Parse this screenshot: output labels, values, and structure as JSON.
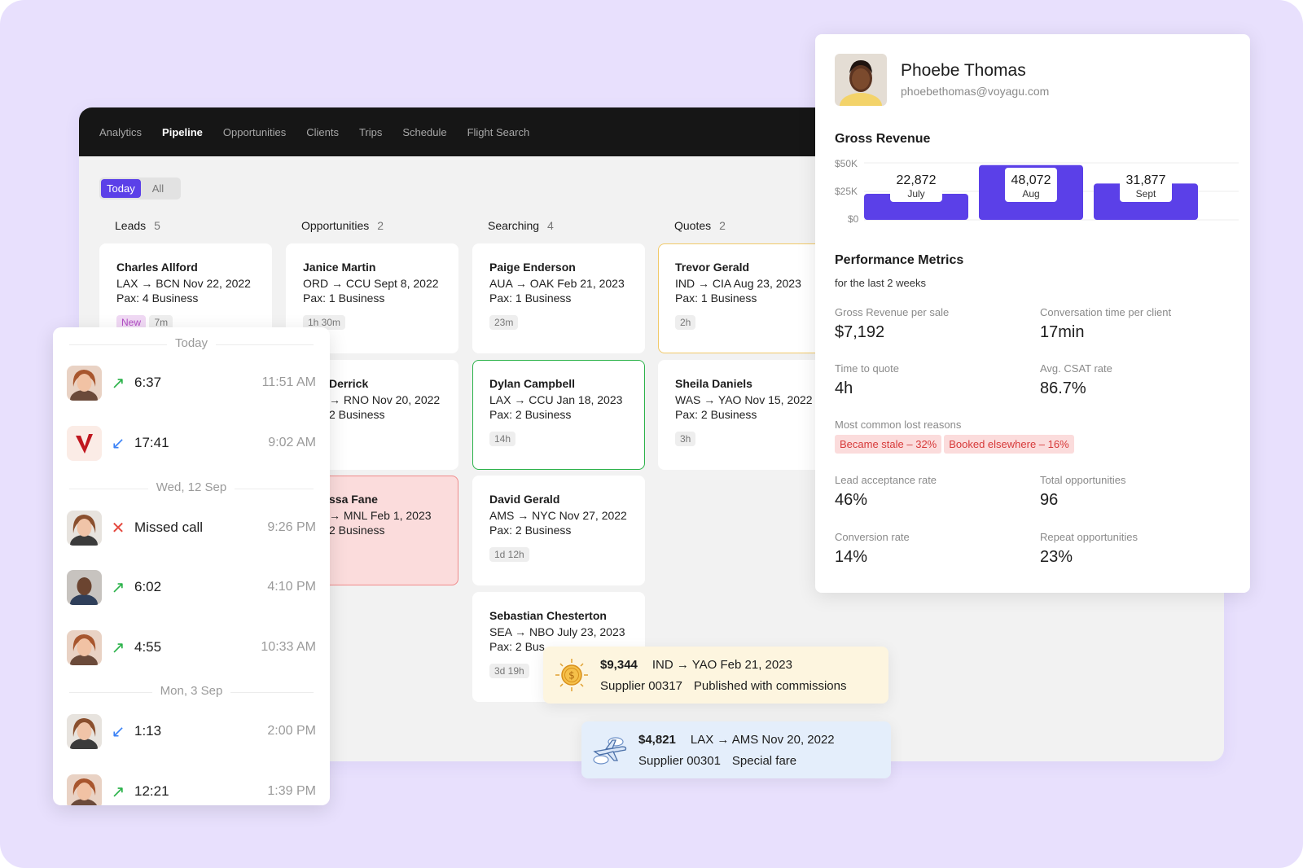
{
  "nav": [
    "Analytics",
    "Pipeline",
    "Opportunities",
    "Clients",
    "Trips",
    "Schedule",
    "Flight Search"
  ],
  "nav_active": "Pipeline",
  "segment": {
    "today": "Today",
    "all": "All"
  },
  "columns": [
    {
      "title": "Leads",
      "count": "5"
    },
    {
      "title": "Opportunities",
      "count": "2"
    },
    {
      "title": "Searching",
      "count": "4"
    },
    {
      "title": "Quotes",
      "count": "2"
    }
  ],
  "cards": {
    "charles": {
      "name": "Charles Allford",
      "route": "LAX → BCN  Nov 22, 2022",
      "pax": "Pax: 4  Business",
      "tag_new": "New",
      "tag": "7m"
    },
    "janice": {
      "name": "Janice Martin",
      "route": "ORD → CCU  Sept 8, 2022",
      "pax": "Pax: 1  Business",
      "tag": "1h 30m"
    },
    "derrick": {
      "name": "Derrick",
      "route": "→ RNO  Nov 20, 2022",
      "pax": "2  Business"
    },
    "fane": {
      "name": "ssa Fane",
      "route": "→ MNL  Feb 1, 2023",
      "pax": "2  Business"
    },
    "paige": {
      "name": "Paige Enderson",
      "route": "AUA → OAK  Feb 21, 2023",
      "pax": "Pax: 1  Business",
      "tag": "23m"
    },
    "dylan": {
      "name": "Dylan Campbell",
      "route": "LAX → CCU  Jan 18, 2023",
      "pax": "Pax: 2  Business",
      "tag": "14h"
    },
    "david": {
      "name": "David Gerald",
      "route": "AMS → NYC  Nov 27, 2022",
      "pax": "Pax: 2  Business",
      "tag": "1d 12h"
    },
    "sebastian": {
      "name": "Sebastian Chesterton",
      "route": "SEA → NBO  July 23, 2023",
      "pax": "Pax: 2  Bus",
      "tag": "3d 19h"
    },
    "trevor": {
      "name": "Trevor Gerald",
      "route": "IND → CIA  Aug 23, 2023",
      "pax": "Pax: 1  Business",
      "tag": "2h"
    },
    "sheila": {
      "name": "Sheila Daniels",
      "route": "WAS → YAO  Nov 15, 2022",
      "pax": "Pax: 2  Business",
      "tag": "3h"
    }
  },
  "calls": {
    "sep_today": "Today",
    "sep_wed": "Wed, 12 Sep",
    "sep_mon": "Mon, 3 Sep",
    "rows": [
      {
        "dur": "6:37",
        "time": "11:51 AM"
      },
      {
        "dur": "17:41",
        "time": "9:02 AM"
      },
      {
        "dur": "Missed call",
        "time": "9:26 PM"
      },
      {
        "dur": "6:02",
        "time": "4:10 PM"
      },
      {
        "dur": "4:55",
        "time": "10:33 AM"
      },
      {
        "dur": "1:13",
        "time": "2:00 PM"
      },
      {
        "dur": "12:21",
        "time": "1:39 PM"
      }
    ]
  },
  "profile": {
    "name": "Phoebe Thomas",
    "email": "phoebethomas@voyagu.com"
  },
  "revenue_title": "Gross Revenue",
  "chart_data": {
    "type": "bar",
    "title": "Gross Revenue",
    "categories": [
      "July",
      "Aug",
      "Sept"
    ],
    "values": [
      22872,
      48072,
      31877
    ],
    "value_labels": [
      "22,872",
      "48,072",
      "31,877"
    ],
    "yticks": [
      "$50K",
      "$25K",
      "$0"
    ],
    "ylim": [
      0,
      50000
    ]
  },
  "metrics_title": "Performance Metrics",
  "metrics_sub": "for the last 2 weeks",
  "metrics": [
    {
      "label": "Gross Revenue per sale",
      "value": "$7,192"
    },
    {
      "label": "Conversation time per client",
      "value": "17min"
    },
    {
      "label": "Time to quote",
      "value": "4h"
    },
    {
      "label": "Avg. CSAT rate",
      "value": "86.7%"
    },
    {
      "label": "Lead acceptance rate",
      "value": "46%"
    },
    {
      "label": "Total opportunities",
      "value": "96"
    },
    {
      "label": "Conversion rate",
      "value": "14%"
    },
    {
      "label": "Repeat opportunities",
      "value": "23%"
    }
  ],
  "lost": {
    "label": "Most common lost reasons",
    "r1": "Became stale – 32%",
    "r2": "Booked elsewhere – 16%"
  },
  "toast1": {
    "price": "$9,344",
    "route": "IND → YAO  Feb 21, 2023",
    "supplier": "Supplier 00317",
    "note": "Published with commissions"
  },
  "toast2": {
    "price": "$4,821",
    "route": "LAX → AMS  Nov 20, 2022",
    "supplier": "Supplier 00301",
    "note": "Special fare"
  },
  "colors": {
    "accent": "#5b40e8",
    "bg": "#e8e0fd",
    "green": "#2bb24a",
    "red": "#e4483e",
    "blue": "#3b82f6"
  }
}
